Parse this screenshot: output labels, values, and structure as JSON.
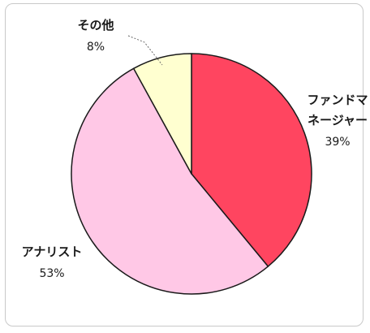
{
  "chart_data": {
    "type": "pie",
    "start_angle_deg": 0,
    "direction": "clockwise",
    "slices": [
      {
        "label_lines": [
          "ファンドマ",
          "ネージャー"
        ],
        "value": 39,
        "value_label": "39%",
        "color": "#ff4560"
      },
      {
        "label_lines": [
          "アナリスト"
        ],
        "value": 53,
        "value_label": "53%",
        "color": "#ffc8e6"
      },
      {
        "label_lines": [
          "その他"
        ],
        "value": 8,
        "value_label": "8%",
        "color": "#ffffd0"
      }
    ]
  }
}
